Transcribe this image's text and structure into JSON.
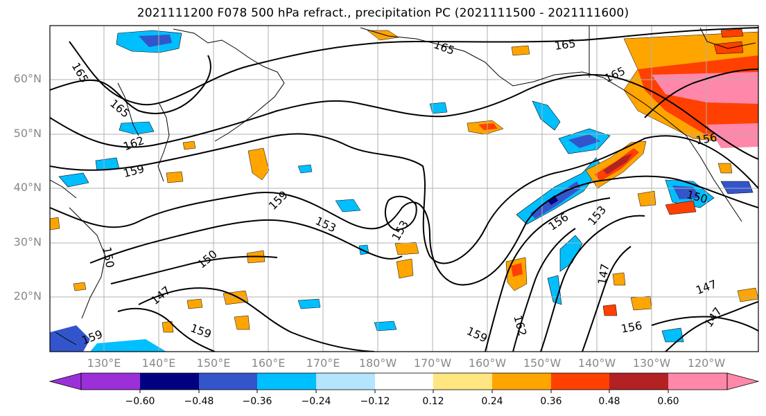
{
  "title": "2021111200 F078 500 hPa refract., precipitation PC (2021111500 - 2021111600)",
  "lat_labels": [
    "60°N",
    "50°N",
    "40°N",
    "30°N",
    "20°N"
  ],
  "lon_labels": [
    "130°E",
    "140°E",
    "150°E",
    "160°E",
    "170°E",
    "180°W",
    "170°W",
    "160°W",
    "150°W",
    "140°W",
    "130°W",
    "120°W"
  ],
  "colorbar": {
    "ticks": [
      "−0.60",
      "−0.48",
      "−0.36",
      "−0.24",
      "−0.12",
      "0.12",
      "0.24",
      "0.36",
      "0.48",
      "0.60"
    ],
    "colors": [
      "#9b30d9",
      "#000080",
      "#3355cc",
      "#00bfff",
      "#b3e5ff",
      "#ffffff",
      "#ffe680",
      "#ffa500",
      "#ff4000",
      "#b22222",
      "#ff88aa"
    ]
  },
  "contour_labels": [
    "165",
    "165",
    "165",
    "165",
    "165",
    "162",
    "159",
    "159",
    "159",
    "159",
    "159",
    "156",
    "156",
    "156",
    "153",
    "153",
    "153",
    "150",
    "150",
    "150",
    "147",
    "147",
    "147",
    "147",
    "162"
  ]
}
